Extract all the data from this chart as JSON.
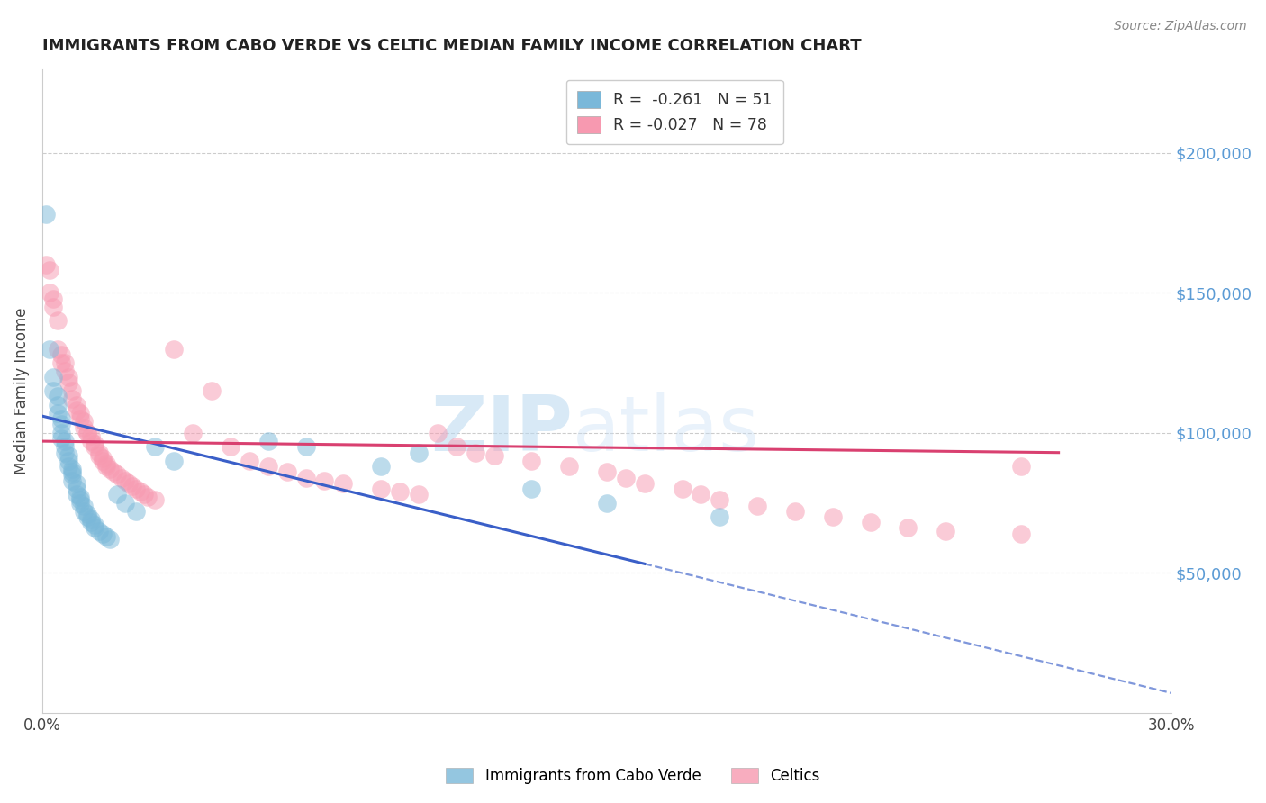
{
  "title": "IMMIGRANTS FROM CABO VERDE VS CELTIC MEDIAN FAMILY INCOME CORRELATION CHART",
  "source": "Source: ZipAtlas.com",
  "ylabel": "Median Family Income",
  "xlim": [
    0.0,
    0.3
  ],
  "ylim": [
    0,
    230000
  ],
  "x_ticks": [
    0.0,
    0.05,
    0.1,
    0.15,
    0.2,
    0.25,
    0.3
  ],
  "x_tick_labels": [
    "0.0%",
    "",
    "",
    "",
    "",
    "",
    "30.0%"
  ],
  "y_ticks_right": [
    50000,
    100000,
    150000,
    200000
  ],
  "y_tick_labels_right": [
    "$50,000",
    "$100,000",
    "$150,000",
    "$200,000"
  ],
  "blue_color": "#7ab8d9",
  "pink_color": "#f799b0",
  "blue_line_color": "#3a5fc8",
  "pink_line_color": "#d94070",
  "R_blue": -0.261,
  "N_blue": 51,
  "R_pink": -0.027,
  "N_pink": 78,
  "legend_label_blue": "Immigrants from Cabo Verde",
  "legend_label_pink": "Celtics",
  "watermark_zip": "ZIP",
  "watermark_atlas": "atlas",
  "blue_line_solid_end": 0.16,
  "blue_line_dash_end": 0.3,
  "pink_line_end": 0.27,
  "blue_line_y0": 106000,
  "blue_line_slope": -330000,
  "pink_line_y0": 97000,
  "pink_line_slope": -15000,
  "blue_scatter_x": [
    0.001,
    0.002,
    0.003,
    0.003,
    0.004,
    0.004,
    0.004,
    0.005,
    0.005,
    0.005,
    0.005,
    0.006,
    0.006,
    0.006,
    0.007,
    0.007,
    0.007,
    0.008,
    0.008,
    0.008,
    0.008,
    0.009,
    0.009,
    0.009,
    0.01,
    0.01,
    0.01,
    0.011,
    0.011,
    0.012,
    0.012,
    0.013,
    0.013,
    0.014,
    0.014,
    0.015,
    0.016,
    0.017,
    0.018,
    0.02,
    0.022,
    0.025,
    0.03,
    0.035,
    0.06,
    0.07,
    0.09,
    0.1,
    0.13,
    0.15,
    0.18
  ],
  "blue_scatter_y": [
    178000,
    130000,
    120000,
    115000,
    113000,
    110000,
    107000,
    105000,
    103000,
    100000,
    98000,
    97000,
    95000,
    93000,
    92000,
    90000,
    88000,
    87000,
    86000,
    85000,
    83000,
    82000,
    80000,
    78000,
    77000,
    76000,
    75000,
    74000,
    72000,
    71000,
    70000,
    69000,
    68000,
    67000,
    66000,
    65000,
    64000,
    63000,
    62000,
    78000,
    75000,
    72000,
    95000,
    90000,
    97000,
    95000,
    88000,
    93000,
    80000,
    75000,
    70000
  ],
  "pink_scatter_x": [
    0.001,
    0.002,
    0.002,
    0.003,
    0.003,
    0.004,
    0.004,
    0.005,
    0.005,
    0.006,
    0.006,
    0.007,
    0.007,
    0.008,
    0.008,
    0.009,
    0.009,
    0.01,
    0.01,
    0.011,
    0.011,
    0.012,
    0.012,
    0.013,
    0.013,
    0.014,
    0.014,
    0.015,
    0.015,
    0.016,
    0.016,
    0.017,
    0.017,
    0.018,
    0.019,
    0.02,
    0.021,
    0.022,
    0.023,
    0.024,
    0.025,
    0.026,
    0.027,
    0.028,
    0.03,
    0.035,
    0.04,
    0.045,
    0.05,
    0.055,
    0.06,
    0.065,
    0.07,
    0.075,
    0.08,
    0.09,
    0.095,
    0.1,
    0.105,
    0.11,
    0.115,
    0.12,
    0.13,
    0.14,
    0.15,
    0.155,
    0.16,
    0.17,
    0.175,
    0.18,
    0.19,
    0.2,
    0.21,
    0.22,
    0.23,
    0.24,
    0.26,
    0.26
  ],
  "pink_scatter_y": [
    160000,
    158000,
    150000,
    148000,
    145000,
    140000,
    130000,
    128000,
    125000,
    125000,
    122000,
    120000,
    118000,
    115000,
    112000,
    110000,
    108000,
    107000,
    105000,
    104000,
    102000,
    100000,
    100000,
    99000,
    97000,
    96000,
    95000,
    93000,
    92000,
    91000,
    90000,
    89000,
    88000,
    87000,
    86000,
    85000,
    84000,
    83000,
    82000,
    81000,
    80000,
    79000,
    78000,
    77000,
    76000,
    130000,
    100000,
    115000,
    95000,
    90000,
    88000,
    86000,
    84000,
    83000,
    82000,
    80000,
    79000,
    78000,
    100000,
    95000,
    93000,
    92000,
    90000,
    88000,
    86000,
    84000,
    82000,
    80000,
    78000,
    76000,
    74000,
    72000,
    70000,
    68000,
    66000,
    65000,
    64000,
    88000
  ]
}
